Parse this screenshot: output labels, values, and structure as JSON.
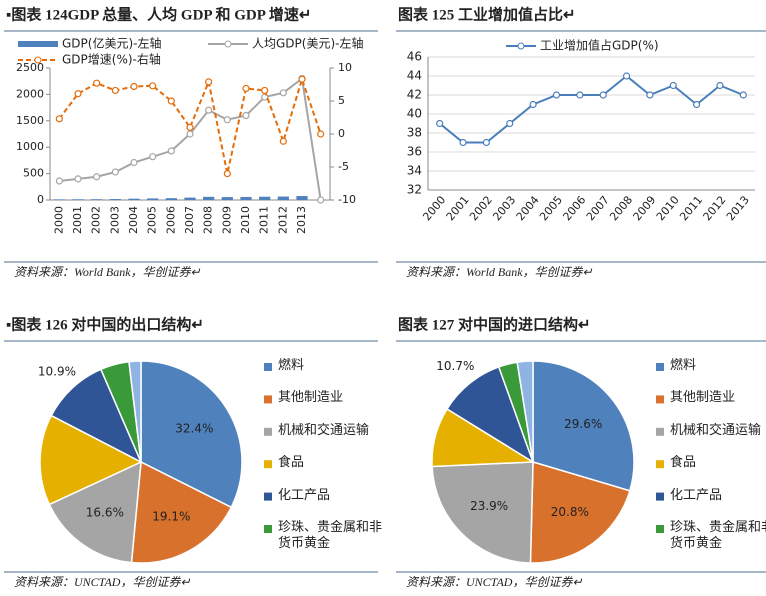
{
  "chart_data": [
    {
      "type": "combo",
      "title": "▪图表 124GDP 总量、人均 GDP 和 GDP 增速↵",
      "source": "资料来源：World Bank，华创证券↵",
      "categories": [
        "2000",
        "2001",
        "2002",
        "2003",
        "2004",
        "2005",
        "2006",
        "2007",
        "2008",
        "2009",
        "2010",
        "2011",
        "2012",
        "2013",
        null
      ],
      "ylim": [
        0,
        2500
      ],
      "yticks": [
        0,
        500,
        1000,
        1500,
        2000,
        2500
      ],
      "y2lim": [
        -10,
        10
      ],
      "y2ticks": [
        -10,
        -5,
        0,
        5,
        10
      ],
      "series": [
        {
          "name": "GDP(亿美元)-左轴",
          "mark": "bar",
          "color": "#4f81bd",
          "values": [
            12,
            14,
            15,
            18,
            25,
            30,
            35,
            45,
            60,
            55,
            58,
            62,
            65,
            75,
            0
          ]
        },
        {
          "name": "人均GDP(美元)-左轴",
          "mark": "line",
          "color": "#a5a5a5",
          "values": [
            360,
            400,
            440,
            530,
            710,
            820,
            930,
            1250,
            1700,
            1520,
            1600,
            1950,
            2030,
            2300,
            0
          ]
        },
        {
          "name": "GDP增速(%)-右轴",
          "mark": "line",
          "dashed": true,
          "axis": "y2",
          "color": "#e46c0a",
          "values": [
            2.3,
            6.1,
            7.7,
            6.6,
            7.2,
            7.3,
            5,
            1,
            7.9,
            -6,
            6.9,
            6.6,
            -1.1,
            8.3,
            0
          ]
        }
      ]
    },
    {
      "type": "line",
      "title": "图表 125 工业增加值占比↵",
      "source": "资料来源：World Bank，华创证券↵",
      "categories": [
        "2000",
        "2001",
        "2002",
        "2003",
        "2004",
        "2005",
        "2006",
        "2007",
        "2008",
        "2009",
        "2010",
        "2011",
        "2012",
        "2013"
      ],
      "ylim": [
        32,
        46
      ],
      "yticks": [
        32,
        34,
        36,
        38,
        40,
        42,
        44,
        46
      ],
      "grid": true,
      "series": [
        {
          "name": "工业增加值占GDP(%)",
          "color": "#4a7ebb",
          "values": [
            39,
            37,
            37,
            39,
            41,
            42,
            42,
            42,
            44,
            42,
            43,
            41,
            43,
            42
          ]
        }
      ]
    },
    {
      "type": "pie",
      "title": "▪图表 126 对中国的出口结构↵",
      "source": "资料来源：UNCTAD，华创证券↵",
      "categories": [
        "燃料",
        "其他制造业",
        "机械和交通运输",
        "食品",
        "化工产品",
        "珍珠、贵金属和非货币黄金",
        null
      ],
      "colors": [
        "#4f81bd",
        "#d8712c",
        "#a5a5a5",
        "#e6b000",
        "#2f5597",
        "#3a9a3a",
        "#8fb4e3"
      ],
      "values": [
        32.4,
        19.1,
        16.6,
        14.5,
        10.9,
        4.6,
        1.9
      ],
      "value_labels": [
        "32.4%",
        "19.1%",
        "16.6%",
        null,
        "10.9%",
        null,
        null
      ]
    },
    {
      "type": "pie",
      "title": "图表 127 对中国的进口结构↵",
      "source": "资料来源：UNCTAD，华创证券↵",
      "categories": [
        "燃料",
        "其他制造业",
        "机械和交通运输",
        "食品",
        "化工产品",
        "珍珠、贵金属和非货币黄金",
        null
      ],
      "colors": [
        "#4f81bd",
        "#d8712c",
        "#a5a5a5",
        "#e6b000",
        "#2f5597",
        "#3a9a3a",
        "#8fb4e3"
      ],
      "values": [
        29.6,
        20.8,
        23.9,
        9.5,
        10.7,
        3,
        2.5
      ],
      "value_labels": [
        "29.6%",
        "20.8%",
        "23.9%",
        null,
        "10.7%",
        null,
        null
      ]
    }
  ]
}
